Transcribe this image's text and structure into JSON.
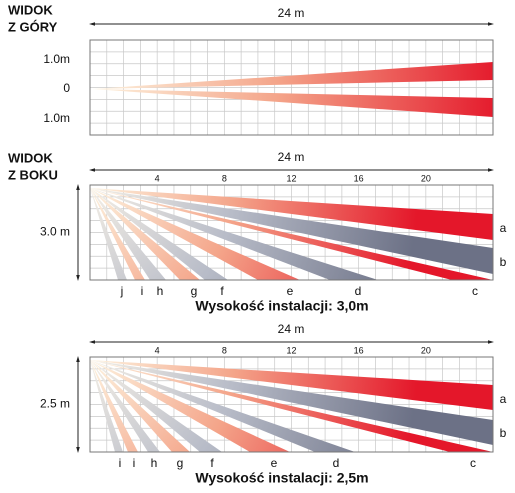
{
  "top_view": {
    "title": [
      "WIDOK",
      "Z GÓRY"
    ],
    "width_label": "24 m",
    "y_labels": [
      "1.0m",
      "0",
      "1.0m"
    ]
  },
  "side_views": [
    {
      "title": [
        "WIDOK",
        "Z BOKU"
      ],
      "width_label": "24 m",
      "ticks": [
        "4",
        "8",
        "12",
        "16",
        "20"
      ],
      "height_label": "3.0 m",
      "zone_labels": [
        "j",
        "i",
        "h",
        "g",
        "f",
        "e",
        "d",
        "c"
      ],
      "side_labels": [
        "a",
        "b"
      ],
      "caption": "Wysokość instalacji: 3,0m"
    },
    {
      "width_label": "24 m",
      "ticks": [
        "4",
        "8",
        "12",
        "16",
        "20"
      ],
      "height_label": "2.5 m",
      "zone_labels": [
        "i",
        "i",
        "h",
        "g",
        "f",
        "e",
        "d",
        "c"
      ],
      "side_labels": [
        "a",
        "b"
      ],
      "caption": "Wysokość instalacji: 2,5m"
    }
  ]
}
